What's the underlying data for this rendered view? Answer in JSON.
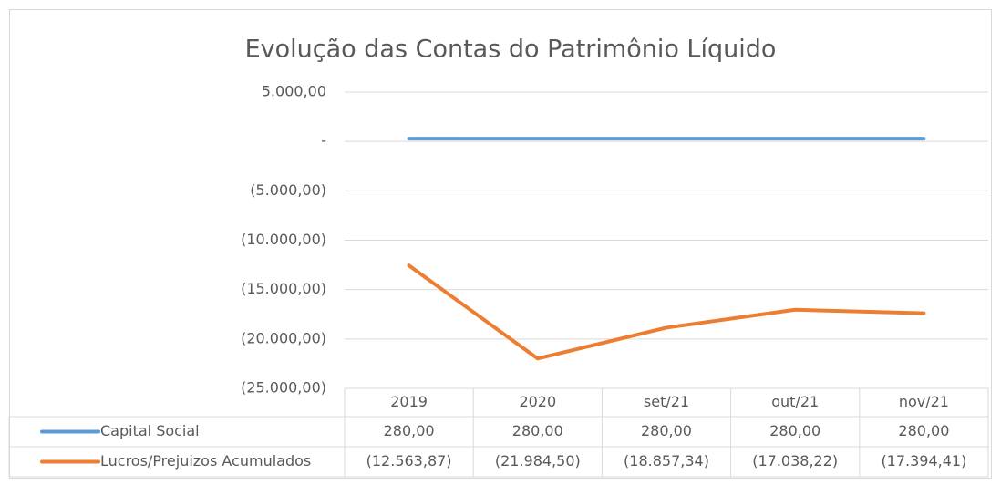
{
  "chart_data": {
    "type": "line",
    "title": "Evolução das Contas do Patrimônio Líquido",
    "categories": [
      "2019",
      "2020",
      "set/21",
      "out/21",
      "nov/21"
    ],
    "series": [
      {
        "name": "Capital Social",
        "color": "#5b9bd5",
        "values": [
          280,
          280,
          280,
          280,
          280
        ],
        "value_labels": [
          "280,00",
          "280,00",
          "280,00",
          "280,00",
          "280,00"
        ]
      },
      {
        "name": "Lucros/Prejuizos Acumulados",
        "color": "#ed7d31",
        "values": [
          -12563.87,
          -21984.5,
          -18857.34,
          -17038.22,
          -17394.41
        ],
        "value_labels": [
          "(12.563,87)",
          "(21.984,50)",
          "(18.857,34)",
          "(17.038,22)",
          "(17.394,41)"
        ]
      }
    ],
    "ylim": [
      -25000,
      5000
    ],
    "yticks": [
      {
        "value": 5000,
        "label": "5.000,00"
      },
      {
        "value": 0,
        "label": "-"
      },
      {
        "value": -5000,
        "label": "(5.000,00)"
      },
      {
        "value": -10000,
        "label": "(10.000,00)"
      },
      {
        "value": -15000,
        "label": "(15.000,00)"
      },
      {
        "value": -20000,
        "label": "(20.000,00)"
      },
      {
        "value": -25000,
        "label": "(25.000,00)"
      }
    ],
    "grid": true,
    "data_table": true
  }
}
